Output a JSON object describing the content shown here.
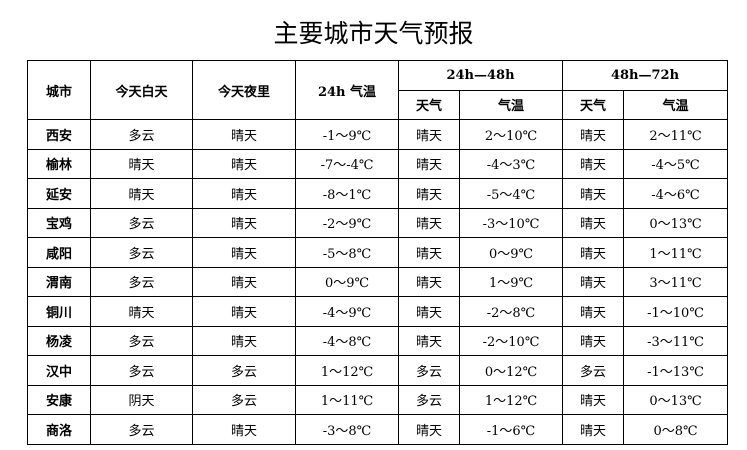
{
  "title": "主要城市天气预报",
  "headers": {
    "city": "城市",
    "day": "今天白天",
    "night": "今天夜里",
    "temp24": "24h 气温",
    "p48": "24h—48h",
    "p72": "48h—72h",
    "weather": "天气",
    "temp": "气温"
  },
  "rows": [
    [
      "西安",
      "多云",
      "晴天",
      "-1～9℃",
      "晴天",
      "2～10℃",
      "晴天",
      "2～11℃"
    ],
    [
      "榆林",
      "晴天",
      "晴天",
      "-7～-4℃",
      "晴天",
      "-4～3℃",
      "晴天",
      "-4～5℃"
    ],
    [
      "延安",
      "晴天",
      "晴天",
      "-8～1℃",
      "晴天",
      "-5～4℃",
      "晴天",
      "-4～6℃"
    ],
    [
      "宝鸡",
      "多云",
      "晴天",
      "-2～9℃",
      "晴天",
      "-3～10℃",
      "晴天",
      "0～13℃"
    ],
    [
      "咸阳",
      "多云",
      "晴天",
      "-5～8℃",
      "晴天",
      "0～9℃",
      "晴天",
      "1～11℃"
    ],
    [
      "渭南",
      "多云",
      "晴天",
      "0～9℃",
      "晴天",
      "1～9℃",
      "晴天",
      "3～11℃"
    ],
    [
      "铜川",
      "晴天",
      "晴天",
      "-4～9℃",
      "晴天",
      "-2～8℃",
      "晴天",
      "-1～10℃"
    ],
    [
      "杨凌",
      "多云",
      "晴天",
      "-4～8℃",
      "晴天",
      "-2～10℃",
      "晴天",
      "-3～11℃"
    ],
    [
      "汉中",
      "多云",
      "多云",
      "1～12℃",
      "多云",
      "0～12℃",
      "多云",
      "-1～13℃"
    ],
    [
      "安康",
      "阴天",
      "多云",
      "1～11℃",
      "多云",
      "1～12℃",
      "晴天",
      "0～13℃"
    ],
    [
      "商洛",
      "多云",
      "晴天",
      "-3～8℃",
      "晴天",
      "-1～6℃",
      "晴天",
      "0～8℃"
    ]
  ]
}
